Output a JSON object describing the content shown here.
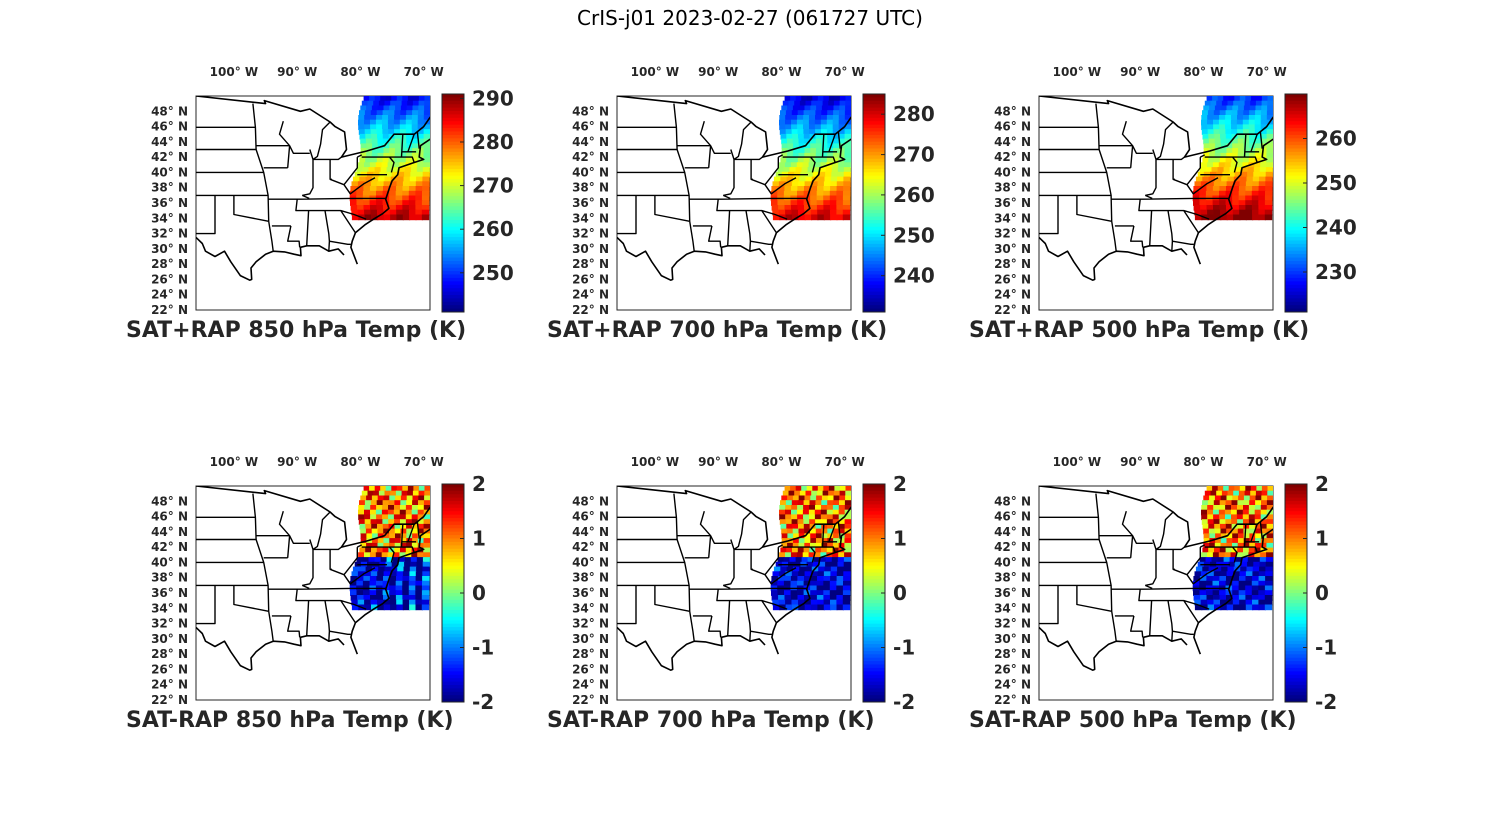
{
  "title": "CrIS-j01 2023-02-27 (061727 UTC)",
  "map": {
    "lon_ticks": [
      "100° W",
      "90° W",
      "80° W",
      "70° W"
    ],
    "lat_ticks": [
      "48° N",
      "46° N",
      "44° N",
      "42° N",
      "40° N",
      "38° N",
      "36° N",
      "34° N",
      "32° N",
      "30° N",
      "28° N",
      "26° N",
      "24° N",
      "22° N"
    ],
    "lon_values": [
      -100,
      -90,
      -80,
      -70
    ],
    "lat_values": [
      48,
      46,
      44,
      42,
      40,
      38,
      36,
      34,
      32,
      30,
      28,
      26,
      24,
      22
    ],
    "extent": {
      "lon": [
        -106,
        -69
      ],
      "lat": [
        22,
        50
      ]
    }
  },
  "colormap": "jet",
  "panels": [
    {
      "id": "p850_total",
      "caption": "SAT+RAP 850 hPa Temp (K)",
      "clim": [
        241,
        291
      ],
      "cb_ticks": [
        "290",
        "280",
        "270",
        "260",
        "250"
      ],
      "cb_tick_values": [
        290,
        280,
        270,
        260,
        250
      ],
      "field": "total"
    },
    {
      "id": "p700_total",
      "caption": "SAT+RAP 700 hPa Temp (K)",
      "clim": [
        231,
        285
      ],
      "cb_ticks": [
        "280",
        "270",
        "260",
        "250",
        "240"
      ],
      "cb_tick_values": [
        280,
        270,
        260,
        250,
        240
      ],
      "field": "total"
    },
    {
      "id": "p500_total",
      "caption": "SAT+RAP 500 hPa Temp (K)",
      "clim": [
        221,
        270
      ],
      "cb_ticks": [
        "260",
        "250",
        "240",
        "230"
      ],
      "cb_tick_values": [
        260,
        250,
        240,
        230
      ],
      "field": "total"
    },
    {
      "id": "p850_diff",
      "caption": "SAT-RAP 850 hPa Temp (K)",
      "clim": [
        -2,
        2
      ],
      "cb_ticks": [
        "2",
        "1",
        "0",
        "-1",
        "-2"
      ],
      "cb_tick_values": [
        2,
        1,
        0,
        -1,
        -2
      ],
      "field": "diff"
    },
    {
      "id": "p700_diff",
      "caption": "SAT-RAP 700 hPa Temp (K)",
      "clim": [
        -2,
        2
      ],
      "cb_ticks": [
        "2",
        "1",
        "0",
        "-1",
        "-2"
      ],
      "cb_tick_values": [
        2,
        1,
        0,
        -1,
        -2
      ],
      "field": "diff"
    },
    {
      "id": "p500_diff",
      "caption": "SAT-RAP 500 hPa Temp (K)",
      "clim": [
        -2,
        2
      ],
      "cb_ticks": [
        "2",
        "1",
        "0",
        "-1",
        "-2"
      ],
      "cb_tick_values": [
        2,
        1,
        0,
        -1,
        -2
      ],
      "field": "diff"
    }
  ]
}
